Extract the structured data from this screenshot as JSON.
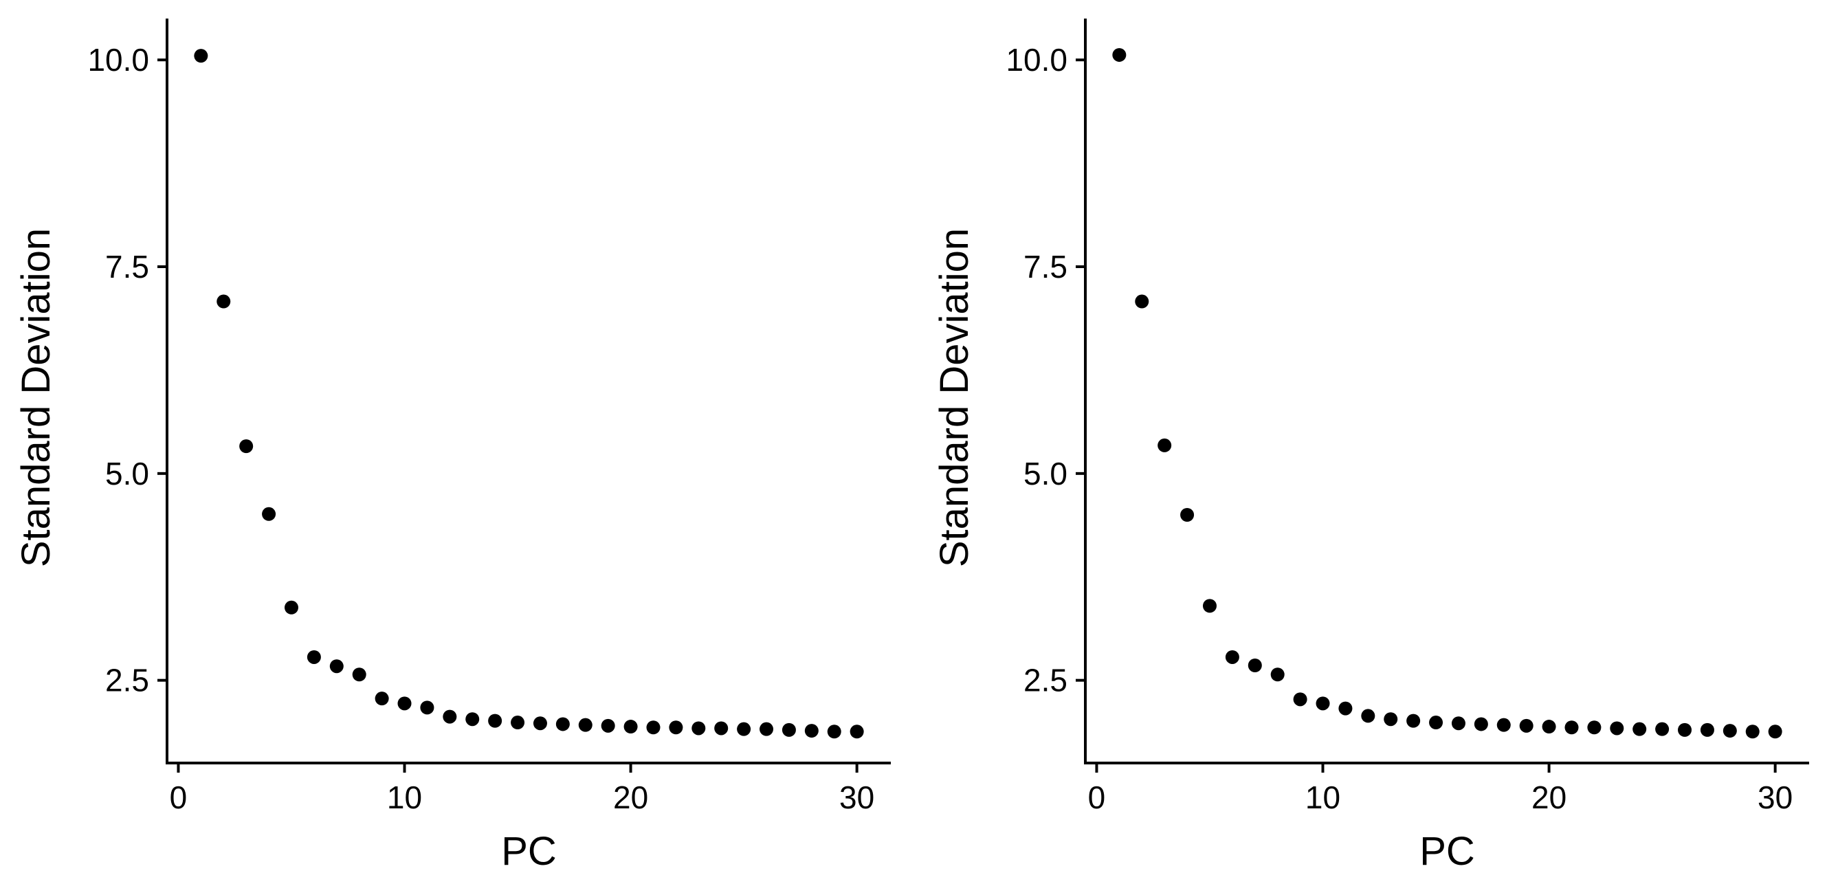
{
  "chart_data": [
    {
      "type": "scatter",
      "title": "",
      "xlabel": "PC",
      "ylabel": "Standard Deviation",
      "xlim": [
        -0.5,
        31.5
      ],
      "ylim": [
        1.5,
        10.5
      ],
      "xticks": [
        0,
        10,
        20,
        30
      ],
      "xtick_labels": [
        "0",
        "10",
        "20",
        "30"
      ],
      "yticks": [
        2.5,
        5.0,
        7.5,
        10.0
      ],
      "ytick_labels": [
        "2.5",
        "5.0",
        "7.5",
        "10.0"
      ],
      "grid": false,
      "series": [
        {
          "name": "",
          "x": [
            1,
            2,
            3,
            4,
            5,
            6,
            7,
            8,
            9,
            10,
            11,
            12,
            13,
            14,
            15,
            16,
            17,
            18,
            19,
            20,
            21,
            22,
            23,
            24,
            25,
            26,
            27,
            28,
            29,
            30
          ],
          "y": [
            10.05,
            7.08,
            5.33,
            4.51,
            3.38,
            2.78,
            2.67,
            2.57,
            2.28,
            2.22,
            2.17,
            2.06,
            2.03,
            2.01,
            1.99,
            1.98,
            1.97,
            1.96,
            1.95,
            1.94,
            1.93,
            1.93,
            1.92,
            1.92,
            1.91,
            1.91,
            1.9,
            1.89,
            1.88,
            1.88
          ]
        }
      ]
    },
    {
      "type": "scatter",
      "title": "",
      "xlabel": "PC",
      "ylabel": "Standard Deviation",
      "xlim": [
        -0.5,
        31.5
      ],
      "ylim": [
        1.5,
        10.5
      ],
      "xticks": [
        0,
        10,
        20,
        30
      ],
      "xtick_labels": [
        "0",
        "10",
        "20",
        "30"
      ],
      "yticks": [
        2.5,
        5.0,
        7.5,
        10.0
      ],
      "ytick_labels": [
        "2.5",
        "5.0",
        "7.5",
        "10.0"
      ],
      "grid": false,
      "series": [
        {
          "name": "",
          "x": [
            1,
            2,
            3,
            4,
            5,
            6,
            7,
            8,
            9,
            10,
            11,
            12,
            13,
            14,
            15,
            16,
            17,
            18,
            19,
            20,
            21,
            22,
            23,
            24,
            25,
            26,
            27,
            28,
            29,
            30
          ],
          "y": [
            10.06,
            7.08,
            5.34,
            4.5,
            3.4,
            2.78,
            2.68,
            2.57,
            2.27,
            2.22,
            2.16,
            2.07,
            2.03,
            2.01,
            1.99,
            1.98,
            1.97,
            1.96,
            1.95,
            1.94,
            1.93,
            1.93,
            1.92,
            1.91,
            1.91,
            1.9,
            1.9,
            1.89,
            1.88,
            1.88
          ]
        }
      ]
    }
  ]
}
